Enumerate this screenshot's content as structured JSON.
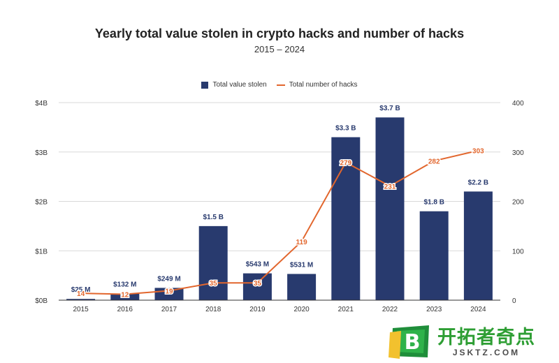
{
  "chart_data": {
    "type": "bar",
    "title": "Yearly total value stolen in crypto hacks and number of hacks",
    "subtitle": "2015 – 2024",
    "categories": [
      "2015",
      "2016",
      "2017",
      "2018",
      "2019",
      "2020",
      "2021",
      "2022",
      "2023",
      "2024"
    ],
    "series": [
      {
        "name": "Total value stolen",
        "type": "bar",
        "axis": "left",
        "unit": "USD billions",
        "color": "#283A6E",
        "values": [
          0.025,
          0.132,
          0.249,
          1.5,
          0.543,
          0.531,
          3.3,
          3.7,
          1.8,
          2.2
        ],
        "labels": [
          "$25  M",
          "$132  M",
          "$249  M",
          "$1.5 B",
          "$543  M",
          "$531  M",
          "$3.3 B",
          "$3.7 B",
          "$1.8 B",
          "$2.2 B"
        ]
      },
      {
        "name": "Total number of hacks",
        "type": "line",
        "axis": "right",
        "color": "#E2662D",
        "values": [
          14,
          12,
          19,
          35,
          35,
          119,
          279,
          231,
          282,
          303
        ],
        "labels": [
          "14",
          "12",
          "19",
          "35",
          "35",
          "119",
          "279",
          "231",
          "282",
          "303"
        ]
      }
    ],
    "y_left": {
      "ylim": [
        0,
        4
      ],
      "ticks": [
        0,
        1,
        2,
        3,
        4
      ],
      "tick_labels": [
        "$0B",
        "$1B",
        "$2B",
        "$3B",
        "$4B"
      ]
    },
    "y_right": {
      "ylim": [
        0,
        400
      ],
      "ticks": [
        0,
        100,
        200,
        300,
        400
      ],
      "tick_labels": [
        "0",
        "100",
        "200",
        "300",
        "400"
      ]
    },
    "grid": true,
    "legend": "top-center"
  },
  "watermark": {
    "logo_letter": "B",
    "text": "开拓者奇点",
    "subtext": "JSKTZ.COM"
  }
}
